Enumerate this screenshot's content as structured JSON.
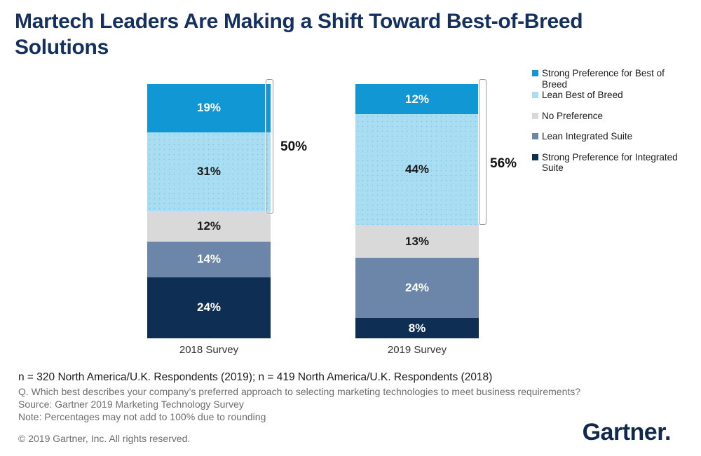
{
  "title": {
    "line1": "Martech Leaders Are Making a Shift Toward Best-of-Breed",
    "line2": "Solutions"
  },
  "chart_data": {
    "type": "bar",
    "subtype": "stacked-100",
    "categories": [
      "2018 Survey",
      "2019 Survey"
    ],
    "series": [
      {
        "name": "Strong Preference for Best of Breed",
        "values": [
          19,
          12
        ],
        "color": "#1197d4",
        "label_color": "#ffffff"
      },
      {
        "name": "Lean Best of Breed",
        "values": [
          31,
          44
        ],
        "color": "#a9def2",
        "label_color": "#1a1a1a"
      },
      {
        "name": "No Preference",
        "values": [
          12,
          13
        ],
        "color": "#d9d9d9",
        "label_color": "#1a1a1a"
      },
      {
        "name": "Lean Integrated Suite",
        "values": [
          14,
          24
        ],
        "color": "#6b86a9",
        "label_color": "#ffffff"
      },
      {
        "name": "Strong Preference for Integrated Suite",
        "values": [
          24,
          8
        ],
        "color": "#0f2e53",
        "label_color": "#ffffff"
      }
    ],
    "annotations": [
      {
        "label": "50%",
        "category": "2018 Survey",
        "covers": [
          "Strong Preference for Best of Breed",
          "Lean Best of Breed"
        ],
        "value": 50
      },
      {
        "label": "56%",
        "category": "2019 Survey",
        "covers": [
          "Strong Preference for Best of Breed",
          "Lean Best of Breed"
        ],
        "value": 56
      }
    ],
    "value_suffix": "%",
    "ylim": [
      0,
      100
    ],
    "grid": false,
    "legend_position": "right"
  },
  "footnotes": {
    "n_line": "n = 320 North America/U.K. Respondents (2019); n = 419 North America/U.K. Respondents (2018)",
    "question": "Q. Which best describes your company’s preferred approach to selecting marketing technologies to meet business requirements?",
    "source": "Source: Gartner 2019 Marketing Technology Survey",
    "note": "Note: Percentages may not add to 100% due to rounding"
  },
  "footer": {
    "copyright": "© 2019 Gartner, Inc. All rights reserved.",
    "logo_text": "Gartner."
  }
}
